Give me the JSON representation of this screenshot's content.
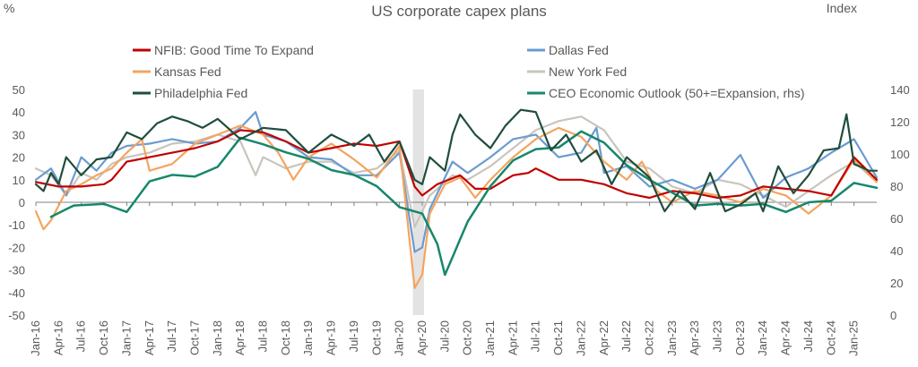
{
  "chart_data": {
    "type": "line",
    "title": "US corporate capex plans",
    "ylabel_left": "%",
    "ylabel_right": "Index",
    "ylim_left": [
      -50,
      50
    ],
    "ylim_right": [
      0,
      140
    ],
    "yticks_left": [
      "50",
      "40",
      "30",
      "20",
      "10",
      "0",
      "-10",
      "-20",
      "-30",
      "-40",
      "-50"
    ],
    "yticks_right": [
      "140",
      "120",
      "100",
      "80",
      "60",
      "40",
      "20",
      "0"
    ],
    "x_tick_labels": [
      "Jan-16",
      "Apr-16",
      "Jul-16",
      "Oct-16",
      "Jan-17",
      "Apr-17",
      "Jul-17",
      "Oct-17",
      "Jan-18",
      "Apr-18",
      "Jul-18",
      "Oct-18",
      "Jan-19",
      "Apr-19",
      "Jul-19",
      "Oct-19",
      "Jan-20",
      "Apr-20",
      "Jul-20",
      "Oct-20",
      "Jan-21",
      "Apr-21",
      "Jul-21",
      "Oct-21",
      "Jan-22",
      "Apr-22",
      "Jul-22",
      "Oct-22",
      "Jan-23",
      "Apr-23",
      "Jul-23",
      "Oct-23",
      "Jan-24",
      "Apr-24",
      "Jul-24",
      "Oct-24",
      "Jan-25"
    ],
    "x_start": "Jan-16",
    "n_points": 112,
    "recession_shading": {
      "from": "Mar-20",
      "to": "Apr-20",
      "color": "#d9d9d9"
    },
    "legend_placement": "top",
    "series": [
      {
        "name": "NFIB: Good Time To Expand",
        "color": "#c00000",
        "axis": "left",
        "keys": [
          [
            0,
            9
          ],
          [
            3,
            7
          ],
          [
            6,
            7
          ],
          [
            9,
            8
          ],
          [
            10,
            10
          ],
          [
            12,
            18
          ],
          [
            15,
            20
          ],
          [
            18,
            22
          ],
          [
            21,
            24
          ],
          [
            24,
            27
          ],
          [
            27,
            32
          ],
          [
            30,
            31
          ],
          [
            33,
            27
          ],
          [
            36,
            22
          ],
          [
            39,
            24
          ],
          [
            42,
            26
          ],
          [
            45,
            25
          ],
          [
            48,
            27
          ],
          [
            50,
            7
          ],
          [
            51,
            3
          ],
          [
            53,
            8
          ],
          [
            56,
            12
          ],
          [
            58,
            6
          ],
          [
            60,
            6
          ],
          [
            63,
            12
          ],
          [
            65,
            13
          ],
          [
            66,
            15
          ],
          [
            69,
            10
          ],
          [
            72,
            10
          ],
          [
            75,
            8
          ],
          [
            78,
            4
          ],
          [
            81,
            2
          ],
          [
            84,
            5
          ],
          [
            87,
            4
          ],
          [
            90,
            2
          ],
          [
            93,
            3
          ],
          [
            96,
            7
          ],
          [
            99,
            6
          ],
          [
            102,
            5
          ],
          [
            105,
            3
          ],
          [
            108,
            20
          ],
          [
            111,
            10
          ]
        ]
      },
      {
        "name": "Kansas Fed",
        "color": "#f4a460",
        "axis": "left",
        "keys": [
          [
            0,
            -4
          ],
          [
            1,
            -12
          ],
          [
            2,
            -8
          ],
          [
            4,
            5
          ],
          [
            6,
            8
          ],
          [
            8,
            12
          ],
          [
            10,
            15
          ],
          [
            12,
            22
          ],
          [
            14,
            28
          ],
          [
            15,
            14
          ],
          [
            18,
            17
          ],
          [
            21,
            26
          ],
          [
            24,
            30
          ],
          [
            27,
            34
          ],
          [
            30,
            30
          ],
          [
            32,
            22
          ],
          [
            34,
            10
          ],
          [
            36,
            20
          ],
          [
            39,
            26
          ],
          [
            42,
            19
          ],
          [
            45,
            11
          ],
          [
            48,
            25
          ],
          [
            50,
            -38
          ],
          [
            51,
            -32
          ],
          [
            52,
            -5
          ],
          [
            54,
            8
          ],
          [
            56,
            11
          ],
          [
            58,
            2
          ],
          [
            60,
            10
          ],
          [
            63,
            20
          ],
          [
            66,
            28
          ],
          [
            69,
            33
          ],
          [
            72,
            29
          ],
          [
            75,
            18
          ],
          [
            78,
            10
          ],
          [
            80,
            18
          ],
          [
            82,
            5
          ],
          [
            84,
            0
          ],
          [
            87,
            5
          ],
          [
            90,
            3
          ],
          [
            93,
            0
          ],
          [
            96,
            6
          ],
          [
            99,
            3
          ],
          [
            102,
            -5
          ],
          [
            105,
            3
          ],
          [
            108,
            19
          ],
          [
            111,
            9
          ]
        ]
      },
      {
        "name": "Philadelphia Fed",
        "color": "#1f4e3d",
        "axis": "left",
        "keys": [
          [
            0,
            8
          ],
          [
            1,
            5
          ],
          [
            2,
            13
          ],
          [
            3,
            8
          ],
          [
            4,
            20
          ],
          [
            6,
            12
          ],
          [
            8,
            19
          ],
          [
            10,
            20
          ],
          [
            12,
            31
          ],
          [
            14,
            28
          ],
          [
            16,
            35
          ],
          [
            18,
            38
          ],
          [
            20,
            36
          ],
          [
            22,
            33
          ],
          [
            24,
            37
          ],
          [
            27,
            28
          ],
          [
            30,
            33
          ],
          [
            33,
            32
          ],
          [
            36,
            22
          ],
          [
            39,
            30
          ],
          [
            42,
            25
          ],
          [
            44,
            30
          ],
          [
            46,
            18
          ],
          [
            48,
            27
          ],
          [
            50,
            10
          ],
          [
            51,
            8
          ],
          [
            52,
            20
          ],
          [
            54,
            14
          ],
          [
            55,
            30
          ],
          [
            56,
            39
          ],
          [
            58,
            30
          ],
          [
            60,
            24
          ],
          [
            62,
            34
          ],
          [
            64,
            41
          ],
          [
            66,
            40
          ],
          [
            68,
            23
          ],
          [
            70,
            30
          ],
          [
            72,
            18
          ],
          [
            74,
            23
          ],
          [
            76,
            8
          ],
          [
            78,
            20
          ],
          [
            81,
            11
          ],
          [
            83,
            -4
          ],
          [
            85,
            5
          ],
          [
            87,
            -3
          ],
          [
            89,
            13
          ],
          [
            91,
            -4
          ],
          [
            93,
            -1
          ],
          [
            95,
            4
          ],
          [
            96,
            -4
          ],
          [
            98,
            16
          ],
          [
            100,
            4
          ],
          [
            102,
            12
          ],
          [
            104,
            23
          ],
          [
            106,
            24
          ],
          [
            107,
            39
          ],
          [
            108,
            17
          ],
          [
            110,
            14
          ],
          [
            111,
            14
          ]
        ]
      },
      {
        "name": "Dallas Fed",
        "color": "#6a9bd1",
        "axis": "left",
        "keys": [
          [
            0,
            10
          ],
          [
            2,
            15
          ],
          [
            4,
            3
          ],
          [
            6,
            20
          ],
          [
            8,
            14
          ],
          [
            10,
            22
          ],
          [
            12,
            25
          ],
          [
            15,
            26
          ],
          [
            18,
            28
          ],
          [
            21,
            26
          ],
          [
            24,
            27
          ],
          [
            27,
            33
          ],
          [
            29,
            40
          ],
          [
            30,
            30
          ],
          [
            33,
            27
          ],
          [
            36,
            20
          ],
          [
            39,
            19
          ],
          [
            42,
            12
          ],
          [
            45,
            12
          ],
          [
            48,
            22
          ],
          [
            50,
            -22
          ],
          [
            51,
            -20
          ],
          [
            52,
            -3
          ],
          [
            55,
            18
          ],
          [
            57,
            13
          ],
          [
            60,
            20
          ],
          [
            63,
            28
          ],
          [
            66,
            30
          ],
          [
            69,
            20
          ],
          [
            72,
            22
          ],
          [
            74,
            33
          ],
          [
            75,
            13
          ],
          [
            78,
            16
          ],
          [
            81,
            7
          ],
          [
            84,
            10
          ],
          [
            87,
            6
          ],
          [
            90,
            10
          ],
          [
            93,
            21
          ],
          [
            96,
            2
          ],
          [
            99,
            11
          ],
          [
            102,
            15
          ],
          [
            105,
            22
          ],
          [
            108,
            28
          ],
          [
            111,
            11
          ]
        ]
      },
      {
        "name": "New York Fed",
        "color": "#c9c5bd",
        "axis": "left",
        "keys": [
          [
            0,
            15
          ],
          [
            2,
            12
          ],
          [
            4,
            3
          ],
          [
            6,
            13
          ],
          [
            8,
            10
          ],
          [
            10,
            17
          ],
          [
            12,
            20
          ],
          [
            15,
            22
          ],
          [
            18,
            26
          ],
          [
            21,
            27
          ],
          [
            24,
            30
          ],
          [
            27,
            27
          ],
          [
            29,
            12
          ],
          [
            30,
            20
          ],
          [
            33,
            15
          ],
          [
            36,
            18
          ],
          [
            39,
            18
          ],
          [
            42,
            13
          ],
          [
            45,
            15
          ],
          [
            48,
            23
          ],
          [
            50,
            -11
          ],
          [
            51,
            -4
          ],
          [
            52,
            3
          ],
          [
            55,
            12
          ],
          [
            57,
            10
          ],
          [
            60,
            16
          ],
          [
            63,
            24
          ],
          [
            66,
            32
          ],
          [
            69,
            36
          ],
          [
            72,
            38
          ],
          [
            75,
            32
          ],
          [
            78,
            18
          ],
          [
            81,
            15
          ],
          [
            84,
            7
          ],
          [
            87,
            4
          ],
          [
            90,
            10
          ],
          [
            93,
            8
          ],
          [
            96,
            3
          ],
          [
            99,
            -2
          ],
          [
            102,
            5
          ],
          [
            105,
            12
          ],
          [
            108,
            18
          ],
          [
            111,
            9
          ]
        ]
      },
      {
        "name": "CEO Economic Outlook (50+=Expansion, rhs)",
        "color": "#17876b",
        "axis": "right",
        "keys": [
          [
            2,
            61
          ],
          [
            5,
            68
          ],
          [
            9,
            69
          ],
          [
            12,
            64
          ],
          [
            15,
            83
          ],
          [
            18,
            87
          ],
          [
            21,
            86
          ],
          [
            24,
            92
          ],
          [
            27,
            110
          ],
          [
            30,
            106
          ],
          [
            33,
            101
          ],
          [
            36,
            97
          ],
          [
            39,
            90
          ],
          [
            42,
            87
          ],
          [
            45,
            80
          ],
          [
            48,
            67
          ],
          [
            51,
            63
          ],
          [
            53,
            44
          ],
          [
            54,
            25
          ],
          [
            57,
            58
          ],
          [
            60,
            80
          ],
          [
            63,
            96
          ],
          [
            66,
            103
          ],
          [
            69,
            104
          ],
          [
            72,
            114
          ],
          [
            75,
            107
          ],
          [
            78,
            93
          ],
          [
            81,
            84
          ],
          [
            84,
            76
          ],
          [
            87,
            68
          ],
          [
            90,
            69
          ],
          [
            93,
            68
          ],
          [
            96,
            69
          ],
          [
            99,
            64
          ],
          [
            102,
            70
          ],
          [
            105,
            71
          ],
          [
            108,
            82
          ],
          [
            111,
            79
          ]
        ]
      }
    ]
  }
}
